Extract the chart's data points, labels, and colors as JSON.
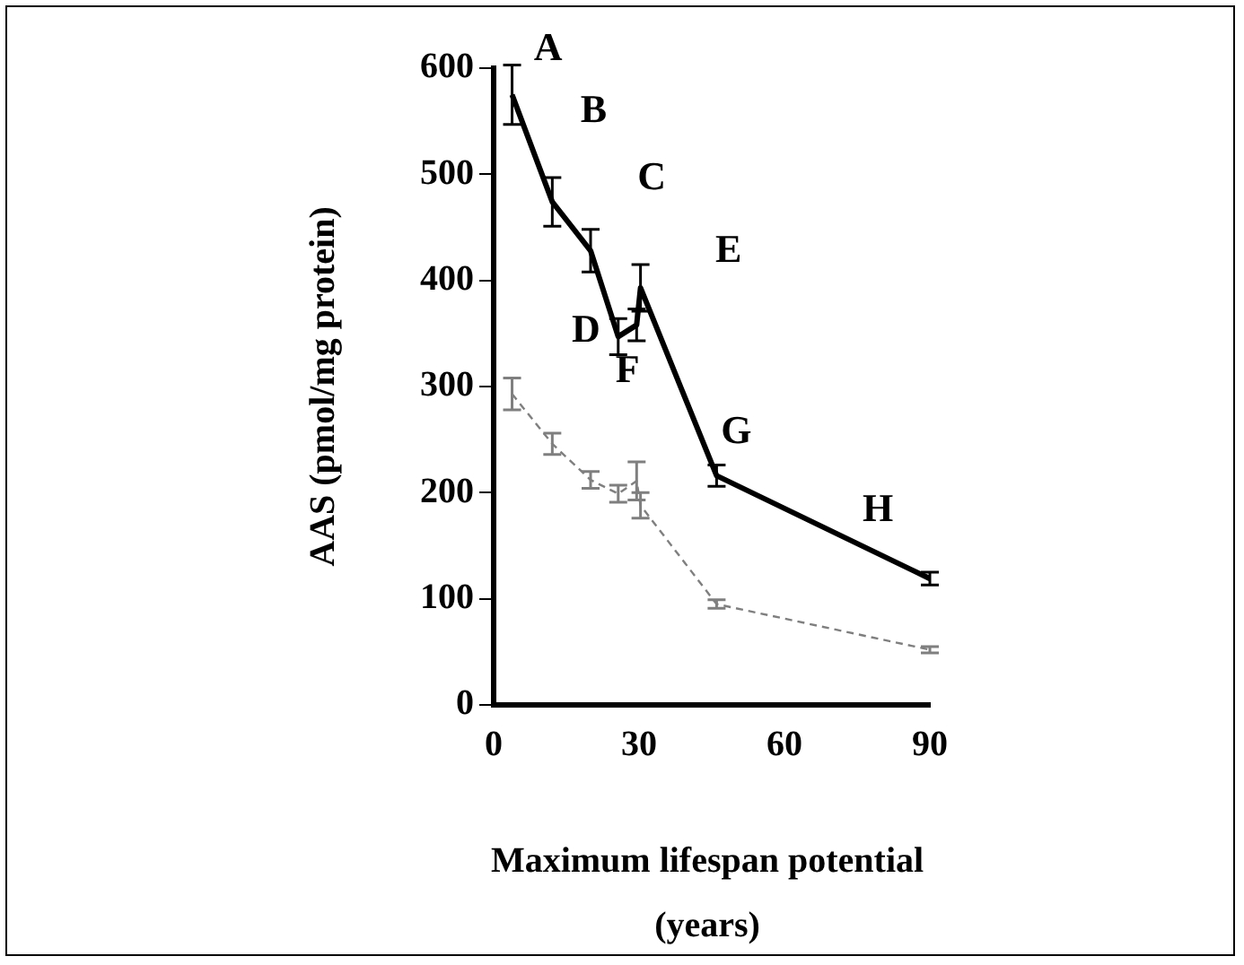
{
  "chart_data": {
    "type": "line",
    "xlabel": "Maximum lifespan potential (years)",
    "ylabel": "AAS (pmol/mg protein)",
    "x": [
      3.8,
      12.1,
      20,
      25.7,
      29.5,
      30.3,
      46,
      90
    ],
    "series": [
      {
        "color": "#000000",
        "values": [
          575,
          474,
          428,
          347,
          358,
          393,
          216,
          119
        ],
        "errors": [
          28,
          23,
          20,
          17,
          15,
          22,
          10,
          6
        ],
        "line_style": "solid"
      },
      {
        "color": "#7f7f7f",
        "values": [
          293,
          246,
          212,
          199,
          211,
          188,
          95,
          52
        ],
        "errors": [
          15,
          10,
          8,
          8,
          18,
          12,
          4,
          3
        ],
        "line_style": "dashed"
      }
    ],
    "annotations": [
      {
        "text": "A",
        "x": 3.8,
        "y": 575
      },
      {
        "text": "B",
        "x": 12.1,
        "y": 474
      },
      {
        "text": "C",
        "x": 20,
        "y": 428
      },
      {
        "text": "D",
        "x": 25.7,
        "y": 347
      },
      {
        "text": "F",
        "x": 29.5,
        "y": 358
      },
      {
        "text": "E",
        "x": 30.3,
        "y": 393
      },
      {
        "text": "G",
        "x": 46,
        "y": 216
      },
      {
        "text": "H",
        "x": 90,
        "y": 119
      }
    ],
    "xlim": [
      0,
      90
    ],
    "xticks": [
      0,
      30,
      60,
      90
    ],
    "ylim": [
      0,
      600
    ],
    "yticks": [
      0,
      100,
      200,
      300,
      400,
      500,
      600
    ],
    "grid": false,
    "legend": false
  }
}
